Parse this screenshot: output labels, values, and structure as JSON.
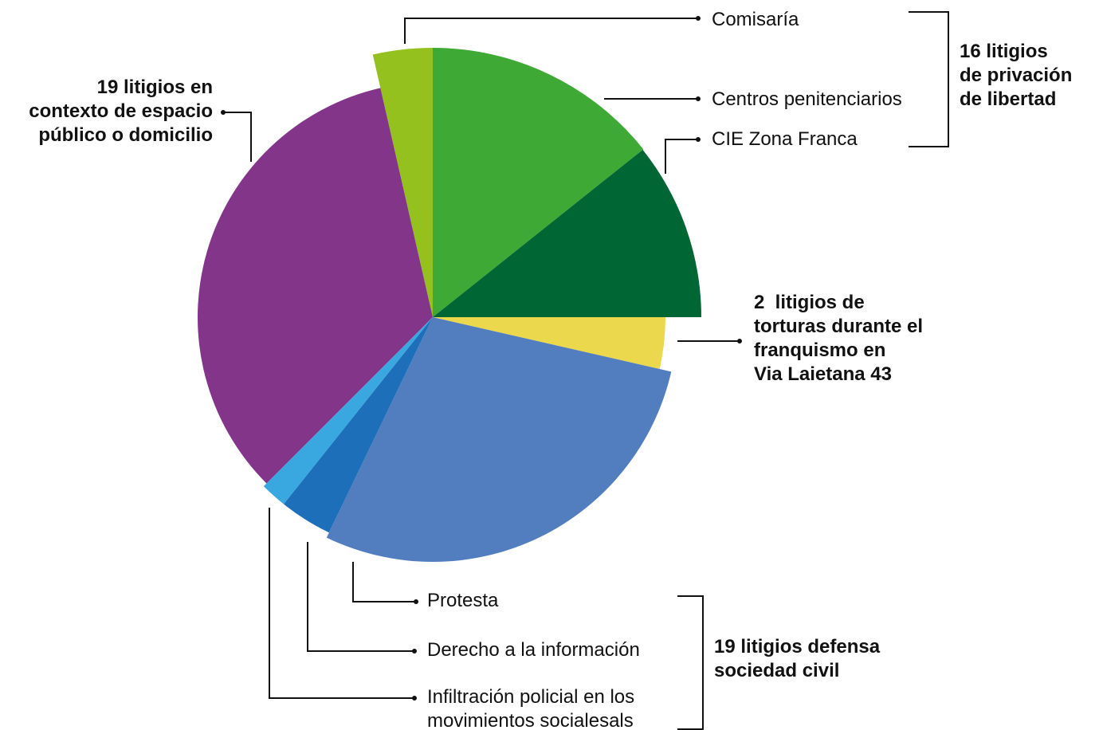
{
  "chart_data": {
    "type": "pie",
    "categories": [
      "Comisaría",
      "Centros penitenciarios",
      "CIE Zona Franca",
      "2  litigios de\ntorturas durante el\nfranquismo en\nVia Laietana 43",
      "Protesta",
      "Derecho a la información",
      "Infiltración policial en los\nmovimientos socialesals",
      "19 litigios en\ncontexto de espacio\npúblico o domicilio"
    ],
    "values": [
      2,
      8,
      6,
      2,
      16,
      2,
      1,
      19
    ],
    "colors": [
      "#95c11f",
      "#3eaa35",
      "#006633",
      "#ecd84c",
      "#527ec0",
      "#1e6fba",
      "#3aa8e0",
      "#833689"
    ],
    "annotations": [
      "16 litigios\nde privación\nde libertad",
      "19 litigios defensa\nsociedad civil"
    ]
  }
}
